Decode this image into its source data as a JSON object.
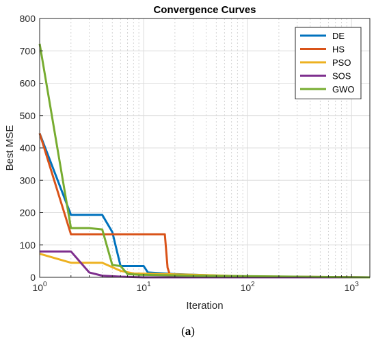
{
  "chart_data": {
    "type": "line",
    "title": "Convergence Curves",
    "xlabel": "Iteration",
    "ylabel": "Best MSE",
    "x_scale": "log",
    "xlim": [
      1,
      1500
    ],
    "ylim": [
      0,
      800
    ],
    "x_ticks": [
      1,
      10,
      100,
      1000
    ],
    "x_tick_labels": [
      {
        "base": "10",
        "exp": "0"
      },
      {
        "base": "10",
        "exp": "1"
      },
      {
        "base": "10",
        "exp": "2"
      },
      {
        "base": "10",
        "exp": "3"
      }
    ],
    "y_ticks": [
      0,
      100,
      200,
      300,
      400,
      500,
      600,
      700,
      800
    ],
    "grid": true,
    "legend_position": "top-right",
    "series": [
      {
        "name": "DE",
        "color": "#0072BD",
        "x": [
          1,
          2,
          4,
          5,
          6,
          10,
          11,
          20,
          100,
          1500
        ],
        "y": [
          445,
          193,
          193,
          140,
          35,
          35,
          15,
          10,
          2,
          0
        ]
      },
      {
        "name": "HS",
        "color": "#D95319",
        "x": [
          1,
          2,
          16,
          17,
          18,
          100,
          1500
        ],
        "y": [
          445,
          133,
          133,
          30,
          5,
          3,
          0
        ]
      },
      {
        "name": "PSO",
        "color": "#EDB120",
        "x": [
          1,
          2,
          4,
          6,
          8,
          30,
          200,
          1500
        ],
        "y": [
          73,
          45,
          45,
          20,
          12,
          8,
          0,
          0
        ]
      },
      {
        "name": "SOS",
        "color": "#7E2F8E",
        "x": [
          1,
          2,
          3,
          4,
          6,
          10,
          1500
        ],
        "y": [
          80,
          80,
          15,
          5,
          2,
          0,
          0
        ]
      },
      {
        "name": "GWO",
        "color": "#77AC30",
        "x": [
          1,
          2,
          3,
          4,
          5,
          6,
          7,
          9,
          30,
          1500
        ],
        "y": [
          722,
          152,
          152,
          148,
          38,
          35,
          10,
          8,
          5,
          0
        ]
      }
    ]
  },
  "caption": {
    "open": "(",
    "letter": "a",
    "close": ")"
  }
}
